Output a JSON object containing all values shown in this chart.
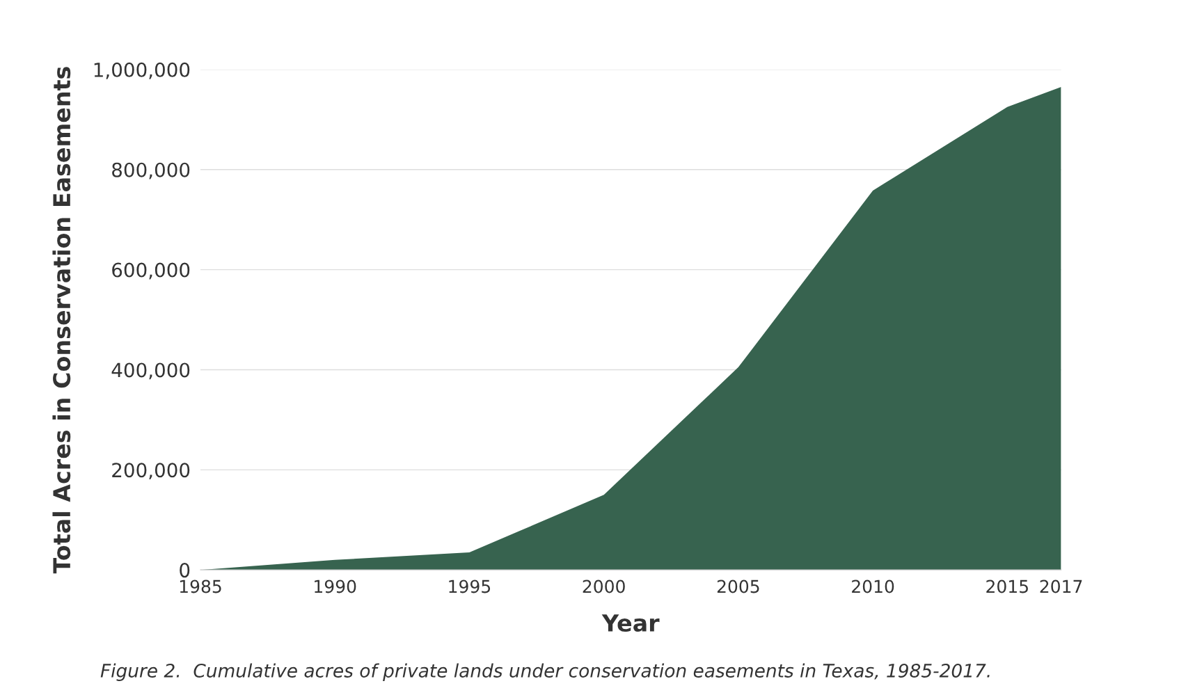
{
  "chart_data": {
    "type": "area",
    "xlabel": "Year",
    "ylabel": "Total Acres in Conservation Easements",
    "annotations": [
      "Figure 2.  Cumulative acres of private lands under conservation easements in Texas, 1985-2017."
    ],
    "x": [
      1985,
      1990,
      1995,
      2000,
      2005,
      2010,
      2015,
      2017
    ],
    "series": [
      {
        "color": "#37634f",
        "values": [
          0,
          20000,
          35000,
          150000,
          405000,
          758000,
          925000,
          965000
        ]
      }
    ],
    "xlim": [
      1985,
      2017
    ],
    "xticks": [
      1985,
      1990,
      1995,
      2000,
      2005,
      2010,
      2015,
      2017
    ],
    "ylim": [
      0,
      1000000
    ],
    "yticks": [
      {
        "value": 0,
        "label": "0"
      },
      {
        "value": 200000,
        "label": "200,000"
      },
      {
        "value": 400000,
        "label": "400,000"
      },
      {
        "value": 600000,
        "label": "600,000"
      },
      {
        "value": 800000,
        "label": "800,000"
      },
      {
        "value": 1000000,
        "label": "1,000,000"
      }
    ],
    "grid": "y"
  }
}
